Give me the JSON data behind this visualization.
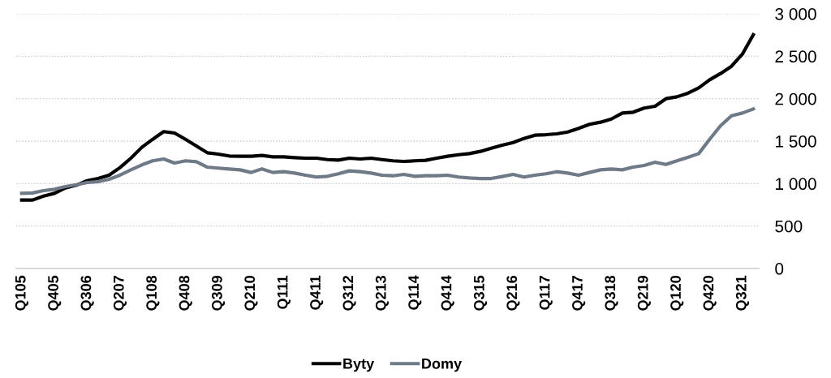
{
  "chart_data": {
    "type": "line",
    "categories": [
      "Q105",
      null,
      null,
      "Q405",
      null,
      null,
      "Q306",
      null,
      null,
      "Q207",
      null,
      null,
      "Q108",
      null,
      null,
      "Q408",
      null,
      null,
      "Q309",
      null,
      null,
      "Q210",
      null,
      null,
      "Q111",
      null,
      null,
      "Q411",
      null,
      null,
      "Q312",
      null,
      null,
      "Q213",
      null,
      null,
      "Q114",
      null,
      null,
      "Q414",
      null,
      null,
      "Q315",
      null,
      null,
      "Q216",
      null,
      null,
      "Q117",
      null,
      null,
      "Q417",
      null,
      null,
      "Q318",
      null,
      null,
      "Q219",
      null,
      null,
      "Q120",
      null,
      null,
      "Q420",
      null,
      null,
      "Q321",
      null
    ],
    "series": [
      {
        "name": "Byty",
        "color": "#000000",
        "values": [
          806,
          806,
          853,
          885,
          949,
          981,
          1035,
          1060,
          1099,
          1188,
          1299,
          1427,
          1522,
          1612,
          1595,
          1522,
          1443,
          1363,
          1347,
          1325,
          1322,
          1322,
          1331,
          1315,
          1315,
          1306,
          1299,
          1299,
          1283,
          1277,
          1299,
          1290,
          1299,
          1283,
          1268,
          1261,
          1268,
          1274,
          1299,
          1322,
          1340,
          1353,
          1379,
          1417,
          1452,
          1484,
          1532,
          1570,
          1576,
          1586,
          1608,
          1650,
          1698,
          1723,
          1760,
          1831,
          1841,
          1889,
          1911,
          2000,
          2022,
          2064,
          2127,
          2223,
          2296,
          2382,
          2525,
          2754
        ]
      },
      {
        "name": "Domy",
        "color": "#6f7a88",
        "values": [
          885,
          890,
          917,
          933,
          965,
          987,
          1013,
          1022,
          1051,
          1099,
          1162,
          1220,
          1268,
          1290,
          1242,
          1268,
          1258,
          1194,
          1182,
          1172,
          1162,
          1131,
          1172,
          1131,
          1140,
          1124,
          1099,
          1077,
          1086,
          1115,
          1150,
          1140,
          1124,
          1099,
          1092,
          1108,
          1086,
          1092,
          1092,
          1099,
          1077,
          1067,
          1060,
          1060,
          1083,
          1108,
          1077,
          1099,
          1115,
          1140,
          1124,
          1099,
          1131,
          1162,
          1172,
          1162,
          1194,
          1213,
          1252,
          1226,
          1268,
          1309,
          1353,
          1522,
          1681,
          1799,
          1831,
          1879
        ]
      }
    ],
    "ylim": [
      0,
      3000
    ],
    "yticks": [
      {
        "value": 0,
        "label": "0"
      },
      {
        "value": 500,
        "label": "500"
      },
      {
        "value": 1000,
        "label": "1 000"
      },
      {
        "value": 1500,
        "label": "1 500"
      },
      {
        "value": 2000,
        "label": "2 000"
      },
      {
        "value": 2500,
        "label": "2 500"
      },
      {
        "value": 3000,
        "label": "3 000"
      }
    ],
    "grid": "y",
    "legend": "bottom",
    "marker": "none",
    "line_style": "solid"
  }
}
